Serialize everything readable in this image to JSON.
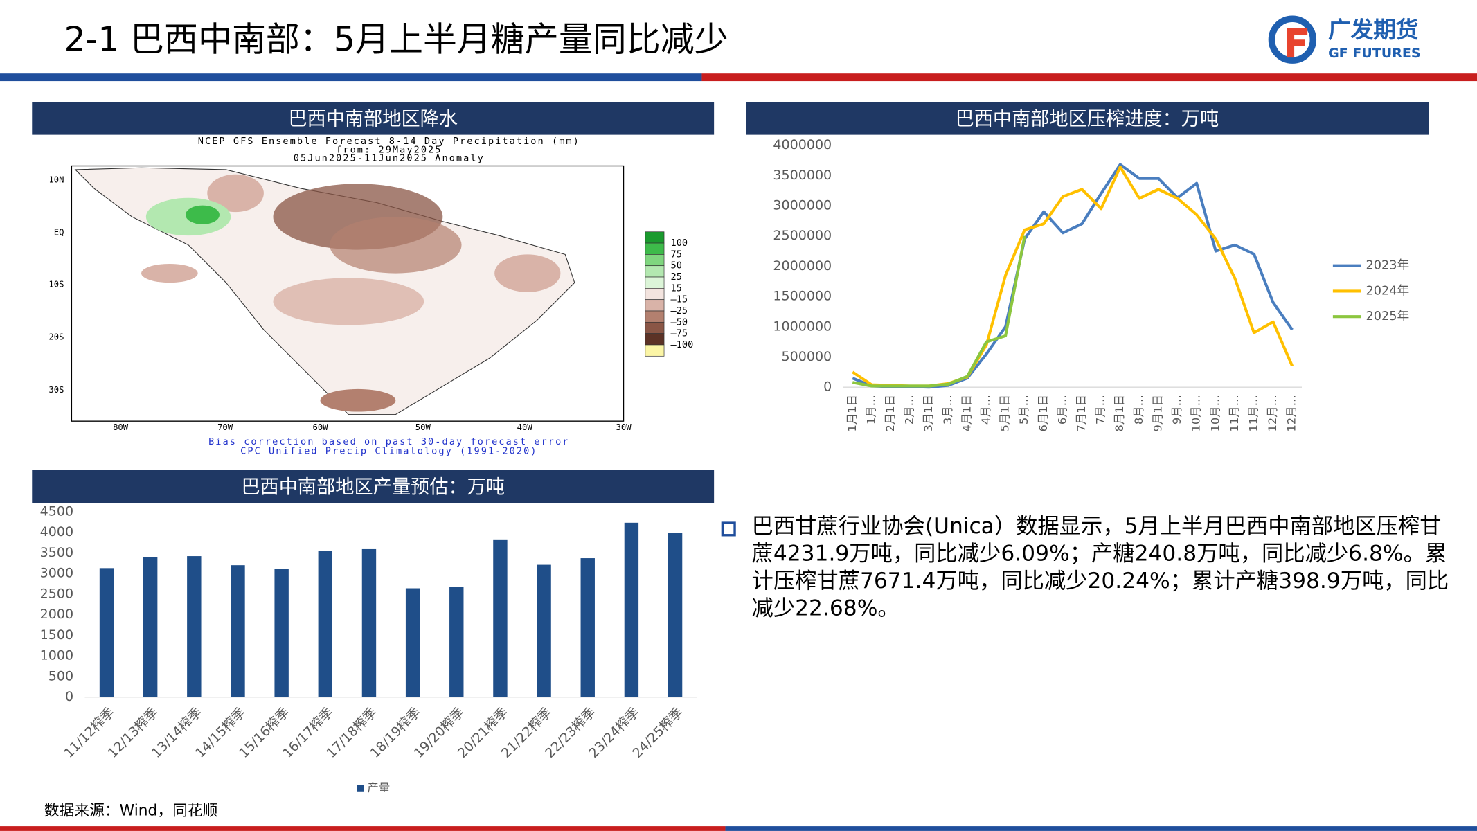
{
  "header": {
    "title": "2-1 巴西中南部：5月上半月糖产量同比减少",
    "logo_cn": "广发期货",
    "logo_en": "GF FUTURES"
  },
  "map": {
    "title": "巴西中南部地区降水",
    "heading": [
      "NCEP GFS Ensemble Forecast 8-14 Day Precipitation (mm)",
      "from: 29May2025",
      "05Jun2025-11Jun2025 Anomaly"
    ],
    "lat_labels": [
      "10N",
      "EQ",
      "10S",
      "20S",
      "30S"
    ],
    "lon_labels": [
      "80W",
      "70W",
      "60W",
      "50W",
      "40W",
      "30W"
    ],
    "legend": [
      {
        "label": "100",
        "color": "#1a9a2e"
      },
      {
        "label": "75",
        "color": "#3dbb4a"
      },
      {
        "label": "50",
        "color": "#7fd67f"
      },
      {
        "label": "25",
        "color": "#b3e8b0"
      },
      {
        "label": "15",
        "color": "#dcf5d8"
      },
      {
        "label": "–15",
        "color": "#f3e4df"
      },
      {
        "label": "–25",
        "color": "#d9b3a8"
      },
      {
        "label": "–50",
        "color": "#b3806f"
      },
      {
        "label": "–75",
        "color": "#8a5646"
      },
      {
        "label": "–100",
        "color": "#5c3226"
      },
      {
        "label": "",
        "color": "#fbf5a6"
      }
    ],
    "footer": [
      "Bias correction based on past 30-day forecast error",
      "CPC Unified Precip Climatology (1991-2020)"
    ]
  },
  "chart_data": [
    {
      "type": "line",
      "title": "巴西中南部地区压榨进度：万吨",
      "categories": [
        "1月1日",
        "1月…",
        "2月1日",
        "2月…",
        "3月1日",
        "3月…",
        "4月1日",
        "4月…",
        "5月1日",
        "5月…",
        "6月1日",
        "6月…",
        "7月1日",
        "7月…",
        "8月1日",
        "8月…",
        "9月1日",
        "9月…",
        "10月…",
        "10月…",
        "11月…",
        "11月…",
        "12月…",
        "12月…"
      ],
      "series": [
        {
          "name": "2023年",
          "color": "#4a7ebf",
          "values": [
            150000,
            20000,
            10000,
            10000,
            0,
            30000,
            150000,
            550000,
            1000000,
            2450000,
            2900000,
            2550000,
            2700000,
            3200000,
            3680000,
            3450000,
            3450000,
            3130000,
            3370000,
            2250000,
            2350000,
            2200000,
            1400000,
            950000
          ]
        },
        {
          "name": "2024年",
          "color": "#ffc000",
          "values": [
            250000,
            40000,
            30000,
            20000,
            20000,
            60000,
            170000,
            700000,
            1850000,
            2600000,
            2700000,
            3150000,
            3270000,
            2950000,
            3640000,
            3120000,
            3270000,
            3120000,
            2850000,
            2450000,
            1800000,
            900000,
            1080000,
            350000
          ]
        },
        {
          "name": "2025年",
          "color": "#8cc63f",
          "values": [
            80000,
            20000,
            20000,
            20000,
            20000,
            50000,
            180000,
            750000,
            850000,
            2500000,
            null,
            null,
            null,
            null,
            null,
            null,
            null,
            null,
            null,
            null,
            null,
            null,
            null,
            null
          ]
        }
      ],
      "ylim": [
        0,
        4000000
      ],
      "yticks": [
        0,
        500000,
        1000000,
        1500000,
        2000000,
        2500000,
        3000000,
        3500000,
        4000000
      ],
      "grid": false,
      "legend": "right"
    },
    {
      "type": "bar",
      "title": "巴西中南部地区产量预估：万吨",
      "categories": [
        "11/12榨季",
        "12/13榨季",
        "13/14榨季",
        "14/15榨季",
        "15/16榨季",
        "16/17榨季",
        "17/18榨季",
        "18/19榨季",
        "19/20榨季",
        "20/21榨季",
        "21/22榨季",
        "22/23榨季",
        "23/24榨季",
        "24/25榨季"
      ],
      "series": [
        {
          "name": "产量",
          "color": "#1f4e89",
          "values": [
            3130,
            3400,
            3420,
            3200,
            3110,
            3550,
            3590,
            2640,
            2670,
            3810,
            3210,
            3370,
            4230,
            3990
          ]
        }
      ],
      "ylim": [
        0,
        4500
      ],
      "yticks": [
        0,
        500,
        1000,
        1500,
        2000,
        2500,
        3000,
        3500,
        4000,
        4500
      ],
      "grid": false,
      "legend": "bottom"
    }
  ],
  "bullet": "巴西甘蔗行业协会(Unica）数据显示，5月上半月巴西中南部地区压榨甘蔗4231.9万吨，同比减少6.09%；产糖240.8万吨，同比减少6.8%。累计压榨甘蔗7671.4万吨，同比减少20.24%；累计产糖398.9万吨，同比减少22.68%。",
  "source": "数据来源：Wind，同花顺"
}
